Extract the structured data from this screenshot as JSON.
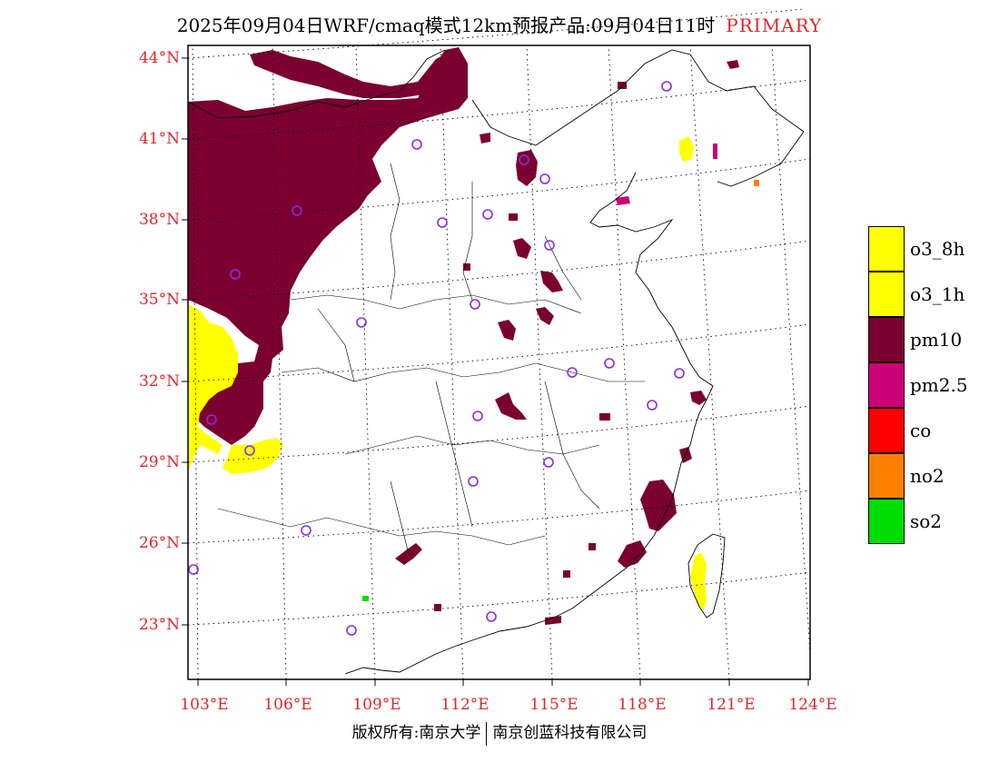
{
  "header": {
    "title": "2025年09月04日WRF/cmaq模式12km预报产品:09月04日11时",
    "primary_label": "PRIMARY"
  },
  "map": {
    "lat_labels": [
      "44°N",
      "41°N",
      "38°N",
      "35°N",
      "32°N",
      "29°N",
      "26°N",
      "23°N"
    ],
    "lon_labels": [
      "103°E",
      "106°E",
      "109°E",
      "112°E",
      "115°E",
      "118°E",
      "121°E",
      "124°E"
    ],
    "colors": {
      "pm10": "#7b0030",
      "o3": "#ffff00",
      "pm25": "#cc0077",
      "co": "#ff0000",
      "no2": "#ff8000",
      "so2": "#00dd00",
      "station_circle": "#8a2be2",
      "label": "#e0262b"
    }
  },
  "legend": {
    "items": [
      {
        "label": "o3_8h",
        "color": "#ffff00"
      },
      {
        "label": "o3_1h",
        "color": "#ffff00"
      },
      {
        "label": "pm10",
        "color": "#7b0030"
      },
      {
        "label": "pm2.5",
        "color": "#cc0077"
      },
      {
        "label": "co",
        "color": "#ff0000"
      },
      {
        "label": "no2",
        "color": "#ff8000"
      },
      {
        "label": "so2",
        "color": "#00dd00"
      }
    ]
  },
  "footer": {
    "left": "版权所有:南京大学",
    "right": "南京创蓝科技有限公司"
  }
}
